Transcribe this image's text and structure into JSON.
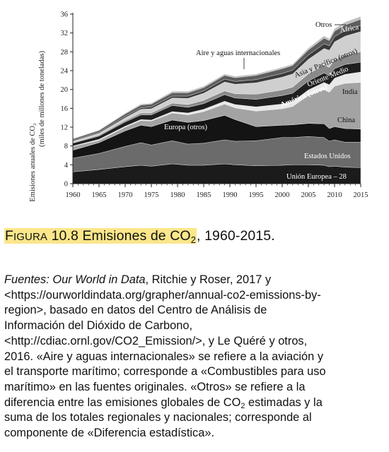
{
  "chart_data": {
    "type": "area",
    "stacked": true,
    "ylabel_lines": [
      "Emisiones anuales de CO₂",
      "(miles de millones de toneladas)"
    ],
    "xlim": [
      1960,
      2015
    ],
    "ylim": [
      0,
      36
    ],
    "x_ticks": [
      1960,
      1965,
      1970,
      1975,
      1980,
      1985,
      1990,
      1995,
      2000,
      2005,
      2010,
      2015
    ],
    "y_ticks": [
      0,
      4,
      8,
      12,
      16,
      20,
      24,
      28,
      32,
      36
    ],
    "x": [
      1960,
      1965,
      1970,
      1973,
      1975,
      1979,
      1982,
      1985,
      1989,
      1991,
      1995,
      2000,
      2002,
      2005,
      2008,
      2009,
      2010,
      2012,
      2015
    ],
    "series": [
      {
        "name": "Unión Europea – 28",
        "color": "#1b1b1b",
        "values": [
          2.5,
          3.0,
          3.6,
          3.9,
          3.7,
          4.2,
          3.9,
          3.9,
          4.2,
          4.0,
          3.8,
          3.9,
          4.0,
          4.0,
          3.9,
          3.6,
          3.7,
          3.5,
          3.4
        ]
      },
      {
        "name": "Estados Unidos",
        "color": "#6b6b6b",
        "values": [
          2.9,
          3.4,
          4.3,
          4.8,
          4.5,
          4.9,
          4.5,
          4.7,
          5.1,
          5.0,
          5.3,
          5.9,
          5.8,
          6.0,
          5.9,
          5.4,
          5.6,
          5.3,
          5.4
        ]
      },
      {
        "name": "Europa (otros)",
        "color": "#141414",
        "values": [
          1.7,
          2.3,
          3.3,
          3.7,
          3.9,
          4.4,
          4.6,
          4.8,
          5.2,
          4.6,
          3.0,
          2.6,
          2.7,
          2.8,
          2.9,
          2.7,
          2.8,
          2.9,
          2.8
        ]
      },
      {
        "name": "China",
        "color": "#a3a3a3",
        "values": [
          0.8,
          0.5,
          0.8,
          1.0,
          1.2,
          1.5,
          1.6,
          1.9,
          2.4,
          2.5,
          3.3,
          3.5,
          3.9,
          5.9,
          7.3,
          7.7,
          8.6,
          9.6,
          9.9
        ]
      },
      {
        "name": "India",
        "color": "#e8e8e8",
        "values": [
          0.1,
          0.2,
          0.2,
          0.2,
          0.2,
          0.3,
          0.4,
          0.5,
          0.6,
          0.7,
          0.9,
          1.0,
          1.0,
          1.2,
          1.5,
          1.6,
          1.7,
          1.9,
          2.2
        ]
      },
      {
        "name": "América (otros)",
        "color": "#1f1f1f",
        "values": [
          0.6,
          0.7,
          0.9,
          1.0,
          1.1,
          1.3,
          1.2,
          1.2,
          1.4,
          1.4,
          1.6,
          1.8,
          1.8,
          1.9,
          2.0,
          1.9,
          2.0,
          2.1,
          2.1
        ]
      },
      {
        "name": "Oriente Medio",
        "color": "#8a8a8a",
        "values": [
          0.1,
          0.2,
          0.3,
          0.4,
          0.4,
          0.5,
          0.6,
          0.7,
          0.8,
          0.9,
          1.1,
          1.2,
          1.3,
          1.5,
          1.7,
          1.8,
          1.9,
          2.0,
          2.2
        ]
      },
      {
        "name": "Asia y Pacífico (otros)",
        "color": "#cfcfcf",
        "values": [
          0.3,
          0.4,
          0.6,
          0.8,
          0.9,
          1.1,
          1.3,
          1.5,
          1.9,
          2.0,
          2.4,
          2.7,
          2.8,
          3.1,
          3.5,
          3.6,
          3.8,
          4.0,
          4.3
        ]
      },
      {
        "name": "África",
        "color": "#3a3a3a",
        "values": [
          0.2,
          0.2,
          0.3,
          0.3,
          0.4,
          0.4,
          0.5,
          0.5,
          0.6,
          0.6,
          0.7,
          0.8,
          0.8,
          0.9,
          1.0,
          1.0,
          1.1,
          1.2,
          1.3
        ]
      },
      {
        "name": "Aire y aguas internacionales",
        "color": "#5e5e5e",
        "values": [
          0.3,
          0.4,
          0.5,
          0.6,
          0.6,
          0.7,
          0.7,
          0.7,
          0.8,
          0.8,
          0.9,
          1.0,
          1.0,
          1.1,
          1.2,
          1.1,
          1.2,
          1.2,
          1.3
        ]
      },
      {
        "name": "Otros",
        "color": "#bdbdbd",
        "values": [
          0.1,
          0.1,
          0.2,
          0.2,
          0.2,
          0.3,
          0.3,
          0.3,
          0.3,
          0.3,
          0.3,
          0.3,
          0.3,
          0.4,
          0.5,
          0.4,
          0.5,
          0.6,
          0.6
        ]
      }
    ]
  },
  "caption": {
    "figura_initial": "F",
    "figura_rest": "IGURA",
    "number": "10.8",
    "title_pre": "Emisiones de CO",
    "title_sub": "2",
    "title_post": ", 1960-2015."
  },
  "sources": {
    "line1_italic": "Fuentes: Our World in Data",
    "line1_rest": ", Ritchie y Roser, 2017 y",
    "line2": "<https://ourworldindata.org/grapher/annual-co2-emissions-by-",
    "line3": "region>, basado en datos del Centro de Análisis de",
    "line4": "Información del Dióxido de Carbono,",
    "line5": "<http://cdiac.ornl.gov/CO2_Emission/>, y Le Quéré y otros,",
    "line6": "2016. «Aire y aguas internacionales» se refiere a la aviación y",
    "line7": "el transporte marítimo; corresponde a «Combustibles para uso",
    "line8": "marítimo» en las fuentes originales. «Otros» se refiere a la",
    "line9_pre": "diferencia entre las emisiones globales de CO",
    "line9_sub": "2",
    "line9_post": " estimadas y la",
    "line10": "suma de los totales regionales y nacionales; corresponde al",
    "line11": "componente de «Diferencia estadística»."
  }
}
